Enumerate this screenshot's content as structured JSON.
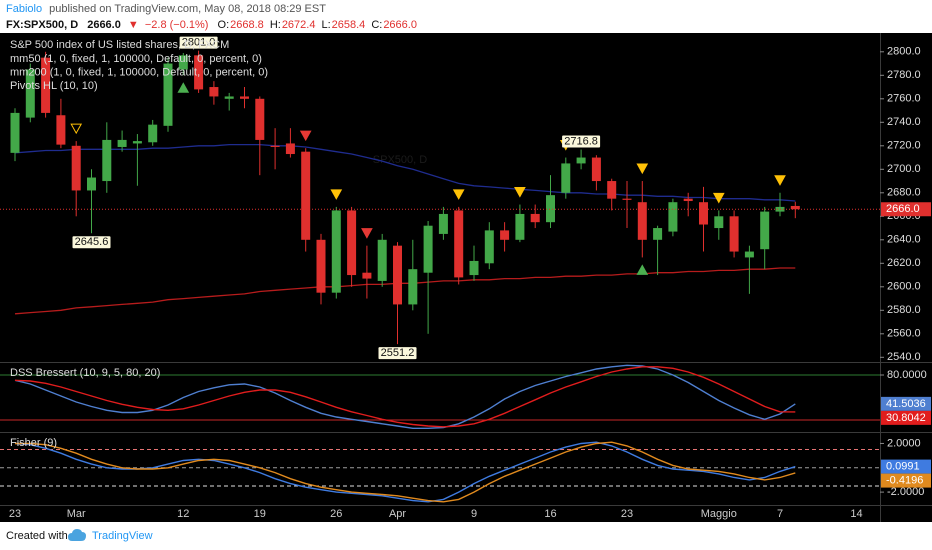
{
  "header": {
    "author": "Fabiolo",
    "published": "published on TradingView.com, May 08, 2018 08:29 EST",
    "symbol": "FX:SPX500, D",
    "price": "2666.0",
    "arrow": "▼",
    "change": "−2.8 (−0.1%)",
    "ohlc": [
      {
        "key": "O:",
        "value": "2668.8"
      },
      {
        "key": "H:",
        "value": "2672.4"
      },
      {
        "key": "L:",
        "value": "2658.4"
      },
      {
        "key": "C:",
        "value": "2666.0"
      }
    ]
  },
  "footer": {
    "created": "Created with",
    "brand": "TradingView"
  },
  "chart_data": [
    {
      "type": "candlestick",
      "title": "S&P 500 index of US listed shares, D, FXCM",
      "watermark": "SPX500, D",
      "categories": [
        "23",
        null,
        null,
        null,
        "Mar",
        null,
        null,
        null,
        null,
        null,
        null,
        "12",
        null,
        null,
        null,
        null,
        "19",
        null,
        null,
        null,
        null,
        "26",
        null,
        null,
        null,
        "Apr",
        null,
        null,
        null,
        null,
        "9",
        null,
        null,
        null,
        null,
        "16",
        null,
        null,
        null,
        null,
        "23",
        null,
        null,
        null,
        null,
        null,
        "Maggio",
        null,
        null,
        null,
        "7",
        null,
        null,
        null,
        null,
        "14",
        null
      ],
      "open": [
        2714,
        2744,
        2795,
        2746,
        2720,
        2682,
        2690,
        2719,
        2722,
        2723,
        2737,
        2785,
        2797,
        2770,
        2760,
        2762,
        2760,
        2720,
        2722,
        2715,
        2640,
        2595,
        2665,
        2612,
        2605,
        2635,
        2585,
        2612,
        2645,
        2665,
        2610,
        2620,
        2648,
        2640,
        2662,
        2655,
        2680,
        2705,
        2710,
        2690,
        2675,
        2672,
        2640,
        2647,
        2675,
        2672,
        2650,
        2660,
        2625,
        2632,
        2664,
        2668.8,
        null,
        null,
        null,
        null,
        null
      ],
      "high": [
        2752,
        2790,
        2800,
        2760,
        2724,
        2700,
        2740,
        2733,
        2730,
        2742,
        2795,
        2799,
        2801,
        2775,
        2765,
        2770,
        2762,
        2735,
        2735,
        2718,
        2645,
        2668,
        2668,
        2635,
        2645,
        2638,
        2640,
        2656,
        2668,
        2668,
        2635,
        2655,
        2655,
        2670,
        2670,
        2695,
        2710,
        2716.8,
        2712,
        2692,
        2690,
        2690,
        2652,
        2675,
        2680,
        2685,
        2665,
        2665,
        2635,
        2668,
        2680,
        2672.4,
        null,
        null,
        null,
        null,
        null
      ],
      "low": [
        2707,
        2740,
        2744,
        2718,
        2660,
        2645.6,
        2680,
        2715,
        2686,
        2720,
        2732,
        2780,
        2765,
        2755,
        2750,
        2752,
        2695,
        2700,
        2710,
        2630,
        2585,
        2590,
        2600,
        2590,
        2600,
        2551.2,
        2580,
        2560,
        2640,
        2602,
        2605,
        2615,
        2630,
        2638,
        2650,
        2650,
        2675,
        2700,
        2682,
        2665,
        2650,
        2625,
        2610,
        2643,
        2660,
        2630,
        2640,
        2625,
        2594,
        2615,
        2660,
        2658.4,
        null,
        null,
        null,
        null,
        null
      ],
      "close": [
        2748,
        2785,
        2748,
        2721,
        2682,
        2693,
        2725,
        2725,
        2724,
        2738,
        2790,
        2797,
        2768,
        2762,
        2762,
        2760,
        2725,
        2719,
        2713,
        2640,
        2595,
        2665,
        2610,
        2607,
        2640,
        2585,
        2615,
        2652,
        2662,
        2608,
        2622,
        2648,
        2640,
        2662,
        2655,
        2678,
        2705,
        2710,
        2690,
        2675,
        2674,
        2640,
        2650,
        2672,
        2673,
        2653,
        2660,
        2630,
        2630,
        2664,
        2668,
        2666.0,
        null,
        null,
        null,
        null,
        null
      ],
      "up_color": "#43a849",
      "down_color": "#e0302e",
      "series": [
        {
          "name": "mm50 (1, 0, fixed, 1, 100000, Default, 0, percent, 0)",
          "color": "#1f2c8f",
          "values": [
            2714,
            2715,
            2716,
            2716,
            2717,
            2717,
            2717,
            2717,
            2717,
            2718,
            2718,
            2719,
            2720,
            2720,
            2721,
            2721,
            2721,
            2720,
            2720,
            2719,
            2717,
            2715,
            2713,
            2710,
            2707,
            2703,
            2700,
            2696,
            2692,
            2688,
            2686,
            2685,
            2684,
            2683,
            2682,
            2681,
            2680,
            2680,
            2679,
            2679,
            2678,
            2678,
            2677,
            2677,
            2676,
            2676,
            2675,
            2675,
            2675,
            2674,
            2674,
            2673,
            null,
            null,
            null,
            null,
            null
          ]
        },
        {
          "name": "mm200 (1, 0, fixed, 1, 100000, Default, 0, percent, 0)",
          "color": "#b71c1c",
          "values": [
            2577,
            2578,
            2579,
            2580,
            2582,
            2583,
            2584,
            2585,
            2586,
            2587,
            2589,
            2590,
            2591,
            2592,
            2593,
            2594,
            2596,
            2597,
            2598,
            2599,
            2600,
            2600,
            2601,
            2602,
            2602,
            2603,
            2603,
            2604,
            2605,
            2605,
            2606,
            2606,
            2607,
            2607,
            2608,
            2608,
            2609,
            2609,
            2610,
            2610,
            2611,
            2611,
            2612,
            2612,
            2613,
            2613,
            2614,
            2614,
            2615,
            2615,
            2616,
            2616,
            null,
            null,
            null,
            null,
            null
          ]
        }
      ],
      "pivots": {
        "name": "Pivots HL (10, 10)",
        "markers": [
          {
            "bar": 4,
            "position": "above",
            "color": "#ffc107",
            "hollow": true
          },
          {
            "bar": 11,
            "position": "below",
            "color": "#4caf50"
          },
          {
            "bar": 19,
            "position": "above",
            "color": "#e53935"
          },
          {
            "bar": 21,
            "position": "above",
            "color": "#ffc107"
          },
          {
            "bar": 23,
            "position": "above",
            "color": "#e53935"
          },
          {
            "bar": 29,
            "position": "above",
            "color": "#ffc107"
          },
          {
            "bar": 33,
            "position": "above",
            "color": "#ffc107"
          },
          {
            "bar": 36,
            "position": "above",
            "color": "#ffc107"
          },
          {
            "bar": 41,
            "position": "above",
            "color": "#ffc107"
          },
          {
            "bar": 41,
            "position": "below",
            "color": "#4caf50"
          },
          {
            "bar": 46,
            "position": "above",
            "color": "#ffc107"
          },
          {
            "bar": 50,
            "position": "above",
            "color": "#ffc107"
          }
        ]
      },
      "pivot_labels": [
        {
          "bar": 5,
          "side": "low",
          "label": "2645.6"
        },
        {
          "bar": 12,
          "side": "high",
          "label": "2801.0"
        },
        {
          "bar": 25,
          "side": "low",
          "label": "2551.2"
        },
        {
          "bar": 37,
          "side": "high",
          "label": "2716.8"
        }
      ],
      "last_label": "2666.0",
      "ylim": [
        2536,
        2816
      ],
      "yticks": [
        {
          "value": 2540,
          "label": "2540.0"
        },
        {
          "value": 2560,
          "label": "2560.0"
        },
        {
          "value": 2580,
          "label": "2580.0"
        },
        {
          "value": 2600,
          "label": "2600.0"
        },
        {
          "value": 2620,
          "label": "2620.0"
        },
        {
          "value": 2640,
          "label": "2640.0"
        },
        {
          "value": 2660,
          "label": "2660.0"
        },
        {
          "value": 2680,
          "label": "2680.0"
        },
        {
          "value": 2700,
          "label": "2700.0"
        },
        {
          "value": 2720,
          "label": "2720.0"
        },
        {
          "value": 2740,
          "label": "2740.0"
        },
        {
          "value": 2760,
          "label": "2760.0"
        },
        {
          "value": 2780,
          "label": "2780.0"
        },
        {
          "value": 2800,
          "label": "2800.0"
        }
      ]
    },
    {
      "type": "line",
      "title": "DSS Bressert (10, 9, 5, 80, 20)",
      "series": [
        {
          "color": "#4f7fd0",
          "last_label": "41.5036",
          "values": [
            73,
            68,
            60,
            52,
            44,
            38,
            33,
            30,
            30,
            33,
            40,
            50,
            58,
            63,
            67,
            68,
            64,
            56,
            46,
            37,
            29,
            24,
            21,
            18,
            15,
            12,
            9,
            9,
            10,
            15,
            24,
            35,
            48,
            58,
            66,
            72,
            78,
            83,
            88,
            91,
            93,
            92,
            88,
            80,
            70,
            58,
            46,
            36,
            27,
            21,
            28,
            41.5036,
            null,
            null,
            null,
            null,
            null
          ]
        },
        {
          "color": "#e11d1d",
          "last_label": "30.8042",
          "values": [
            73,
            72,
            69,
            64,
            58,
            52,
            46,
            41,
            37,
            34,
            33,
            35,
            40,
            46,
            52,
            57,
            60,
            60,
            57,
            51,
            44,
            37,
            31,
            26,
            21,
            17,
            14,
            12,
            11,
            12,
            15,
            21,
            29,
            38,
            47,
            56,
            64,
            71,
            78,
            84,
            88,
            91,
            91,
            89,
            84,
            77,
            68,
            58,
            48,
            38,
            31,
            30.8042,
            null,
            null,
            null,
            null,
            null
          ]
        }
      ],
      "levels": [
        {
          "value": 80,
          "color": "#2e7d32"
        },
        {
          "value": 20,
          "color": "#c62828"
        }
      ],
      "ylim": [
        4,
        96
      ],
      "yticks": [
        {
          "value": 80,
          "label": "80.0000"
        }
      ]
    },
    {
      "type": "line",
      "title": "Fisher (9)",
      "series": [
        {
          "color": "#3f7be0",
          "last_label": "0.0991",
          "values": [
            2.0,
            1.9,
            1.6,
            1.2,
            0.7,
            0.3,
            0.0,
            -0.1,
            -0.1,
            0.0,
            0.3,
            0.6,
            0.7,
            0.6,
            0.3,
            0.0,
            -0.4,
            -0.9,
            -1.3,
            -1.6,
            -1.8,
            -2.0,
            -2.1,
            -2.2,
            -2.3,
            -2.5,
            -2.7,
            -2.8,
            -2.6,
            -2.0,
            -1.3,
            -0.7,
            -0.2,
            0.3,
            0.8,
            1.3,
            1.7,
            2.0,
            2.1,
            1.8,
            1.3,
            0.7,
            0.2,
            -0.1,
            -0.2,
            -0.3,
            -0.5,
            -0.8,
            -1.0,
            -0.8,
            -0.3,
            0.0991,
            null,
            null,
            null,
            null,
            null
          ]
        },
        {
          "color": "#e08a1e",
          "last_label": "-0.4196",
          "values": [
            2.0,
            2.0,
            1.9,
            1.6,
            1.2,
            0.7,
            0.3,
            0.0,
            -0.1,
            -0.1,
            0.0,
            0.3,
            0.6,
            0.7,
            0.6,
            0.3,
            0.0,
            -0.4,
            -0.9,
            -1.3,
            -1.6,
            -1.8,
            -2.0,
            -2.1,
            -2.2,
            -2.3,
            -2.5,
            -2.7,
            -2.8,
            -2.6,
            -2.0,
            -1.3,
            -0.7,
            -0.2,
            0.3,
            0.8,
            1.3,
            1.7,
            2.0,
            2.1,
            1.8,
            1.3,
            0.7,
            0.2,
            -0.1,
            -0.2,
            -0.3,
            -0.5,
            -0.8,
            -1.0,
            -0.8,
            -0.4196,
            null,
            null,
            null,
            null,
            null
          ]
        }
      ],
      "levels": [
        {
          "value": 1.5,
          "color": "#e57373",
          "dashed": true
        },
        {
          "value": 0,
          "color": "#9e9e9e",
          "dashed": true
        },
        {
          "value": -1.5,
          "color": "#e0e0e0",
          "dashed": true
        }
      ],
      "ylim": [
        -3.06,
        2.86
      ],
      "yticks": [
        {
          "value": 2,
          "label": "2.0000"
        },
        {
          "value": -2,
          "label": "-2.0000"
        }
      ]
    }
  ]
}
